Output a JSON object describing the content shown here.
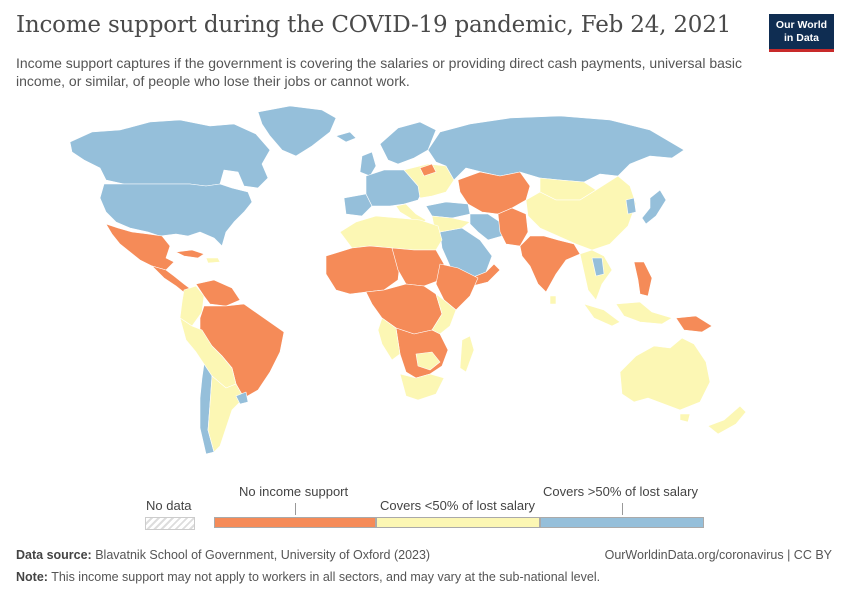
{
  "header": {
    "title": "Income support during the COVID-19 pandemic, Feb 24, 2021",
    "subtitle": "Income support captures if the government is covering the salaries or providing direct cash payments, universal basic income, or similar, of people who lose their jobs or cannot work."
  },
  "logo": {
    "line1": "Our World",
    "line2": "in Data"
  },
  "legend": {
    "no_data_label": "No data",
    "categories": [
      {
        "label": "No income support",
        "color": "#f58b58"
      },
      {
        "label": "Covers <50% of lost salary",
        "color": "#fcf7b4"
      },
      {
        "label": "Covers >50% of lost salary",
        "color": "#95bfda"
      }
    ]
  },
  "footer": {
    "source_label": "Data source:",
    "source_text": "Blavatnik School of Government, University of Oxford (2023)",
    "link": "OurWorldinData.org/coronavirus | CC BY",
    "note_label": "Note:",
    "note_text": "This income support may not apply to workers in all sectors, and may vary at the sub-national level."
  },
  "colors": {
    "ocean": "#ffffff",
    "border": "#ffffff",
    "no_support": "#f58b58",
    "under_50": "#fcf7b4",
    "over_50": "#95bfda"
  }
}
